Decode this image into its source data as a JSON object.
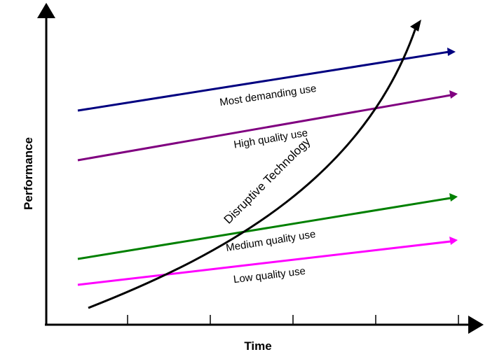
{
  "diagram": {
    "axes": {
      "x_title": "Time",
      "y_title": "Performance"
    },
    "trajectories": [
      {
        "id": "most-demanding",
        "label": "Most demanding use",
        "color": "#000080"
      },
      {
        "id": "high-quality",
        "label": "High quality use",
        "color": "#800080"
      },
      {
        "id": "medium-quality",
        "label": "Medium quality use",
        "color": "#008000"
      },
      {
        "id": "low-quality",
        "label": "Low quality use",
        "color": "#ff00ff"
      }
    ],
    "disruptive": {
      "label": "Disruptive Technology",
      "color": "#000000"
    }
  }
}
